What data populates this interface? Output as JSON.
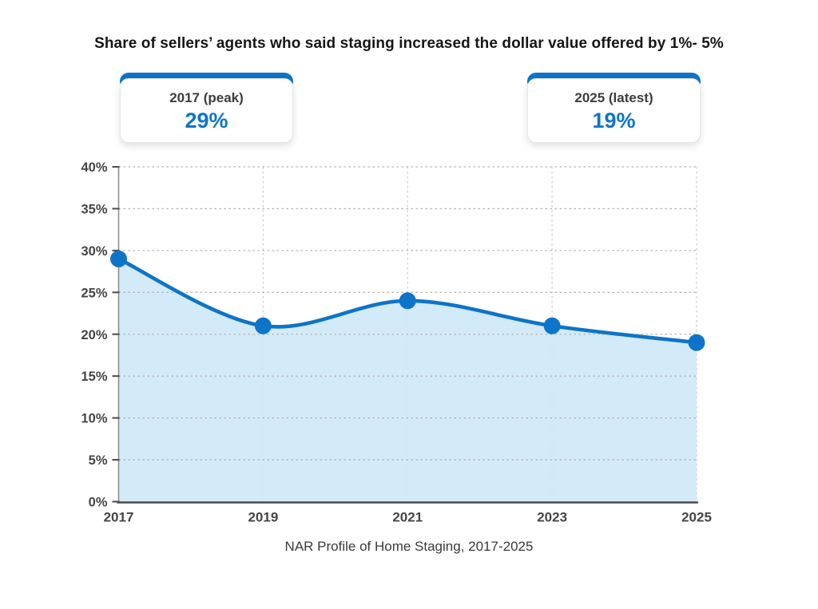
{
  "title": "Share of sellers’ agents who said staging increased the dollar value offered by 1%- 5%",
  "cards": [
    {
      "label": "2017 (peak)",
      "value": "29%"
    },
    {
      "label": "2025 (latest)",
      "value": "19%"
    }
  ],
  "chart_data": {
    "type": "area",
    "x": [
      "2017",
      "2019",
      "2021",
      "2023",
      "2025"
    ],
    "values": [
      29,
      21,
      24,
      21,
      19
    ],
    "series_name": "Share of sellers' agents",
    "title": "Share of sellers’ agents who said staging increased the dollar value offered by 1%- 5%",
    "xlabel": "",
    "ylabel": "",
    "ylim": [
      0,
      40
    ],
    "ytick_step": 5,
    "yticks": [
      "0%",
      "5%",
      "10%",
      "15%",
      "20%",
      "25%",
      "30%",
      "35%",
      "40%"
    ],
    "grid": true,
    "legend": false,
    "annotations": [
      "2017 (peak) 29%",
      "2025 (latest) 19%"
    ]
  },
  "source": "NAR Profile of Home Staging, 2017-2025",
  "colors": {
    "accent": "#0e74c9",
    "area_fill": "#cde7f8",
    "grid_h": "#b5b5b5",
    "grid_v": "#c9c9c9",
    "y_axis": "#8f8f8f",
    "x_axis": "#4a4a4a",
    "tick_label": "#454545",
    "title_text": "#161616",
    "card_label": "#3d3d3d"
  }
}
